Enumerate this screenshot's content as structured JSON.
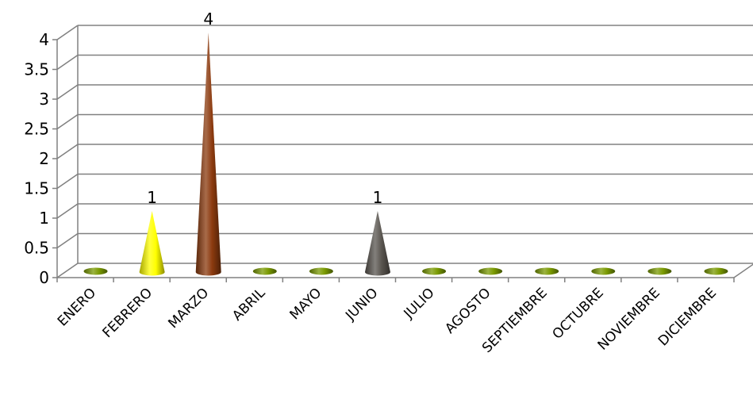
{
  "chart_data": {
    "type": "bar",
    "style": "3d-cone",
    "categories": [
      "ENERO",
      "FEBRERO",
      "MARZO",
      "ABRIL",
      "MAYO",
      "JUNIO",
      "JULIO",
      "AGOSTO",
      "SEPTIEMBRE",
      "OCTUBRE",
      "NOVIEMBRE",
      "DICIEMBRE"
    ],
    "values": [
      0,
      1,
      4,
      0,
      0,
      1,
      0,
      0,
      0,
      0,
      0,
      0
    ],
    "data_labels": [
      "",
      "1",
      "4",
      "",
      "",
      "1",
      "",
      "",
      "",
      "",
      "",
      ""
    ],
    "colors": [
      "#7a9a01",
      "#ffff00",
      "#8b3a0e",
      "#7a9a01",
      "#7a9a01",
      "#5a5650",
      "#7a9a01",
      "#7a9a01",
      "#7a9a01",
      "#7a9a01",
      "#7a9a01",
      "#7a9a01"
    ],
    "yticks": [
      "0",
      "0.5",
      "1",
      "1.5",
      "2",
      "2.5",
      "3",
      "3.5",
      "4"
    ],
    "ylim": [
      0,
      4
    ],
    "grid": true,
    "title": "",
    "xlabel": "",
    "ylabel": "",
    "gridline_color": "#808080"
  }
}
